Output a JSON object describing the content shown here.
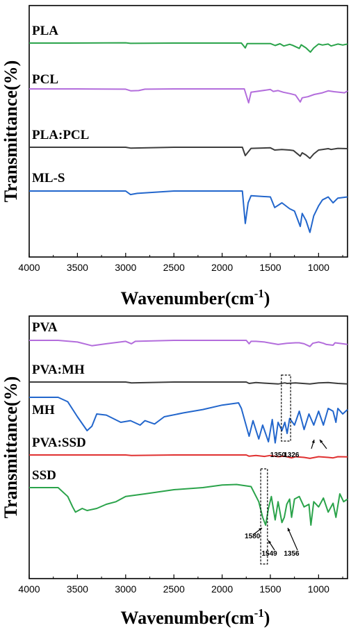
{
  "chart_data": [
    {
      "type": "line",
      "ylabel": "Transmittance(%)",
      "xlabel": "Wavenumber(cm⁻¹)",
      "xlabel_main": "Wavenumber(cm",
      "xlabel_sup": "-1",
      "xlabel_close": ")",
      "xlim": [
        4000,
        700
      ],
      "x_reversed": true,
      "x_ticks": [
        "4000",
        "3500",
        "3000",
        "2500",
        "2000",
        "1500",
        "1000"
      ],
      "grid": false,
      "series": [
        {
          "name": "PLA",
          "color": "#2aa34a",
          "points": [
            [
              4000,
              58
            ],
            [
              3600,
              58
            ],
            [
              3000,
              57
            ],
            [
              2950,
              59
            ],
            [
              2500,
              58
            ],
            [
              2000,
              58
            ],
            [
              1800,
              58
            ],
            [
              1760,
              78
            ],
            [
              1740,
              60
            ],
            [
              1500,
              60
            ],
            [
              1450,
              68
            ],
            [
              1400,
              61
            ],
            [
              1360,
              70
            ],
            [
              1300,
              63
            ],
            [
              1270,
              67
            ],
            [
              1200,
              80
            ],
            [
              1180,
              65
            ],
            [
              1130,
              78
            ],
            [
              1085,
              95
            ],
            [
              1050,
              78
            ],
            [
              1000,
              62
            ],
            [
              960,
              66
            ],
            [
              900,
              62
            ],
            [
              870,
              70
            ],
            [
              800,
              62
            ],
            [
              750,
              66
            ],
            [
              700,
              62
            ]
          ]
        },
        {
          "name": "PCL",
          "color": "#b36ddc",
          "points": [
            [
              4000,
              38
            ],
            [
              3500,
              38
            ],
            [
              3000,
              39
            ],
            [
              2945,
              45
            ],
            [
              2865,
              44
            ],
            [
              2800,
              39
            ],
            [
              2500,
              38
            ],
            [
              2000,
              38
            ],
            [
              1770,
              38
            ],
            [
              1725,
              88
            ],
            [
              1700,
              50
            ],
            [
              1500,
              40
            ],
            [
              1470,
              47
            ],
            [
              1420,
              44
            ],
            [
              1365,
              50
            ],
            [
              1295,
              55
            ],
            [
              1240,
              60
            ],
            [
              1190,
              85
            ],
            [
              1170,
              70
            ],
            [
              1110,
              66
            ],
            [
              1045,
              58
            ],
            [
              960,
              52
            ],
            [
              900,
              45
            ],
            [
              840,
              48
            ],
            [
              730,
              52
            ],
            [
              700,
              45
            ]
          ]
        },
        {
          "name": "PLA:PCL",
          "color": "#3c3c3c",
          "points": [
            [
              4000,
              40
            ],
            [
              3500,
              40
            ],
            [
              3000,
              40
            ],
            [
              2950,
              43
            ],
            [
              2500,
              40
            ],
            [
              2000,
              40
            ],
            [
              1790,
              40
            ],
            [
              1760,
              70
            ],
            [
              1725,
              55
            ],
            [
              1700,
              44
            ],
            [
              1500,
              42
            ],
            [
              1455,
              50
            ],
            [
              1380,
              48
            ],
            [
              1300,
              50
            ],
            [
              1260,
              52
            ],
            [
              1190,
              72
            ],
            [
              1170,
              60
            ],
            [
              1130,
              68
            ],
            [
              1090,
              80
            ],
            [
              1050,
              64
            ],
            [
              1000,
              50
            ],
            [
              960,
              48
            ],
            [
              900,
              45
            ],
            [
              870,
              48
            ],
            [
              800,
              44
            ],
            [
              700,
              45
            ]
          ]
        },
        {
          "name": "ML-S",
          "color": "#2266cc",
          "points": [
            [
              4000,
              40
            ],
            [
              3500,
              40
            ],
            [
              3000,
              40
            ],
            [
              2950,
              46
            ],
            [
              2880,
              44
            ],
            [
              2500,
              40
            ],
            [
              2000,
              40
            ],
            [
              1790,
              40
            ],
            [
              1760,
              95
            ],
            [
              1730,
              60
            ],
            [
              1700,
              48
            ],
            [
              1500,
              50
            ],
            [
              1455,
              68
            ],
            [
              1380,
              60
            ],
            [
              1300,
              70
            ],
            [
              1250,
              74
            ],
            [
              1190,
              100
            ],
            [
              1170,
              78
            ],
            [
              1130,
              90
            ],
            [
              1090,
              110
            ],
            [
              1050,
              82
            ],
            [
              1000,
              65
            ],
            [
              960,
              55
            ],
            [
              900,
              50
            ],
            [
              850,
              60
            ],
            [
              800,
              52
            ],
            [
              700,
              50
            ]
          ]
        }
      ]
    },
    {
      "type": "line",
      "ylabel": "Transmittance(%)",
      "xlabel": "Wavenumber(cm⁻¹)",
      "xlabel_main": "Wavenumber(cm",
      "xlabel_sup": "-1",
      "xlabel_close": ")",
      "xlim": [
        4000,
        700
      ],
      "x_reversed": true,
      "x_ticks": [
        "4000",
        "3500",
        "3000",
        "2500",
        "2000",
        "1500",
        "1000"
      ],
      "grid": false,
      "annotations": [
        "1350",
        "1326",
        "1580",
        "1549",
        "1356"
      ],
      "series": [
        {
          "name": "PVA",
          "color": "#b36ddc",
          "points": [
            [
              4000,
              38
            ],
            [
              3700,
              38
            ],
            [
              3500,
              45
            ],
            [
              3350,
              60
            ],
            [
              3200,
              52
            ],
            [
              3000,
              42
            ],
            [
              2940,
              52
            ],
            [
              2900,
              42
            ],
            [
              2500,
              38
            ],
            [
              2000,
              38
            ],
            [
              1750,
              38
            ],
            [
              1720,
              52
            ],
            [
              1700,
              42
            ],
            [
              1650,
              42
            ],
            [
              1560,
              45
            ],
            [
              1420,
              55
            ],
            [
              1330,
              50
            ],
            [
              1240,
              48
            ],
            [
              1200,
              48
            ],
            [
              1150,
              52
            ],
            [
              1090,
              63
            ],
            [
              1060,
              50
            ],
            [
              1000,
              45
            ],
            [
              950,
              50
            ],
            [
              920,
              55
            ],
            [
              850,
              58
            ],
            [
              830,
              48
            ],
            [
              750,
              52
            ],
            [
              700,
              55
            ]
          ]
        },
        {
          "name": "PVA:MH",
          "color": "#3c3c3c",
          "points": [
            [
              4000,
              45
            ],
            [
              3500,
              45
            ],
            [
              3000,
              45
            ],
            [
              2940,
              48
            ],
            [
              2500,
              45
            ],
            [
              2000,
              45
            ],
            [
              1750,
              45
            ],
            [
              1720,
              50
            ],
            [
              1650,
              47
            ],
            [
              1560,
              49
            ],
            [
              1420,
              52
            ],
            [
              1350,
              48
            ],
            [
              1326,
              50
            ],
            [
              1240,
              48
            ],
            [
              1090,
              52
            ],
            [
              1000,
              48
            ],
            [
              900,
              47
            ],
            [
              800,
              50
            ],
            [
              700,
              52
            ]
          ]
        },
        {
          "name": "MH",
          "color": "#2266cc",
          "points": [
            [
              4000,
              50
            ],
            [
              3700,
              50
            ],
            [
              3600,
              58
            ],
            [
              3500,
              85
            ],
            [
              3400,
              110
            ],
            [
              3350,
              102
            ],
            [
              3300,
              80
            ],
            [
              3200,
              82
            ],
            [
              3050,
              95
            ],
            [
              2950,
              92
            ],
            [
              2850,
              100
            ],
            [
              2800,
              92
            ],
            [
              2700,
              98
            ],
            [
              2600,
              85
            ],
            [
              2400,
              78
            ],
            [
              2200,
              72
            ],
            [
              2000,
              64
            ],
            [
              1830,
              60
            ],
            [
              1800,
              70
            ],
            [
              1720,
              120
            ],
            [
              1680,
              92
            ],
            [
              1620,
              125
            ],
            [
              1580,
              100
            ],
            [
              1520,
              130
            ],
            [
              1480,
              90
            ],
            [
              1450,
              132
            ],
            [
              1420,
              95
            ],
            [
              1380,
              110
            ],
            [
              1350,
              95
            ],
            [
              1326,
              115
            ],
            [
              1300,
              88
            ],
            [
              1250,
              100
            ],
            [
              1200,
              75
            ],
            [
              1150,
              108
            ],
            [
              1100,
              80
            ],
            [
              1050,
              100
            ],
            [
              1000,
              75
            ],
            [
              950,
              100
            ],
            [
              900,
              70
            ],
            [
              850,
              75
            ],
            [
              820,
              95
            ],
            [
              800,
              70
            ],
            [
              750,
              80
            ],
            [
              700,
              72
            ]
          ]
        },
        {
          "name": "PVA:SSD",
          "color": "#e03030",
          "points": [
            [
              4000,
              38
            ],
            [
              3500,
              38
            ],
            [
              3000,
              38
            ],
            [
              2940,
              40
            ],
            [
              2500,
              38
            ],
            [
              2000,
              38
            ],
            [
              1750,
              38
            ],
            [
              1720,
              43
            ],
            [
              1650,
              40
            ],
            [
              1560,
              44
            ],
            [
              1500,
              40
            ],
            [
              1420,
              45
            ],
            [
              1356,
              43
            ],
            [
              1280,
              50
            ],
            [
              1240,
              45
            ],
            [
              1150,
              48
            ],
            [
              1090,
              52
            ],
            [
              1000,
              45
            ],
            [
              900,
              48
            ],
            [
              850,
              50
            ],
            [
              800,
              45
            ],
            [
              700,
              46
            ]
          ]
        },
        {
          "name": "SSD",
          "color": "#2aa34a",
          "points": [
            [
              4000,
              38
            ],
            [
              3700,
              38
            ],
            [
              3600,
              55
            ],
            [
              3550,
              75
            ],
            [
              3520,
              85
            ],
            [
              3450,
              78
            ],
            [
              3400,
              82
            ],
            [
              3300,
              78
            ],
            [
              3200,
              70
            ],
            [
              3100,
              65
            ],
            [
              3000,
              55
            ],
            [
              2800,
              50
            ],
            [
              2500,
              42
            ],
            [
              2200,
              38
            ],
            [
              2000,
              33
            ],
            [
              1850,
              32
            ],
            [
              1700,
              36
            ],
            [
              1620,
              65
            ],
            [
              1580,
              95
            ],
            [
              1549,
              110
            ],
            [
              1520,
              78
            ],
            [
              1490,
              55
            ],
            [
              1450,
              100
            ],
            [
              1420,
              65
            ],
            [
              1380,
              105
            ],
            [
              1356,
              95
            ],
            [
              1330,
              70
            ],
            [
              1300,
              60
            ],
            [
              1280,
              95
            ],
            [
              1250,
              60
            ],
            [
              1200,
              55
            ],
            [
              1150,
              75
            ],
            [
              1100,
              70
            ],
            [
              1080,
              110
            ],
            [
              1050,
              65
            ],
            [
              1000,
              75
            ],
            [
              950,
              58
            ],
            [
              900,
              85
            ],
            [
              850,
              68
            ],
            [
              820,
              95
            ],
            [
              780,
              50
            ],
            [
              740,
              65
            ],
            [
              700,
              60
            ]
          ]
        }
      ]
    }
  ]
}
